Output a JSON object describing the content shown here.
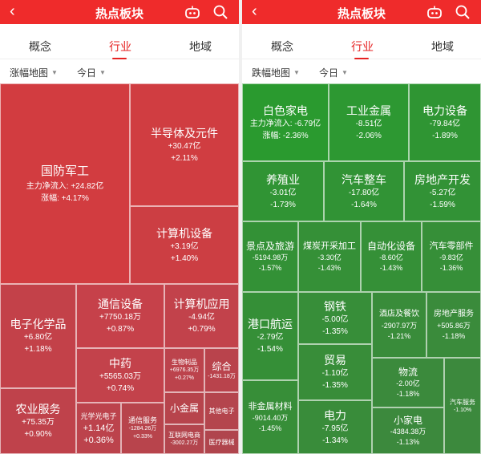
{
  "colors": {
    "header_bg": "#ef2b2b",
    "accent": "#e62222",
    "red_deep": "#cf3c3f",
    "red_mid": "#c7414b",
    "red_light": "#b9434b",
    "green_deep": "#2a9a2f",
    "green_mid": "#2e8d35",
    "green_light": "#3a8a3c"
  },
  "header": {
    "title": "热点板块",
    "back_icon": "chevron-left-icon",
    "robot_icon": "robot-icon",
    "search_icon": "search-icon"
  },
  "tabs": [
    "概念",
    "行业",
    "地域"
  ],
  "left": {
    "filter_label": "涨幅地图",
    "period_label": "今日",
    "sectors": [
      {
        "name": "国防军工",
        "flow": "主力净流入: +24.82亿",
        "change": "涨幅: +4.17%"
      },
      {
        "name": "半导体及元件",
        "flow": "+30.47亿",
        "change": "+2.11%"
      },
      {
        "name": "计算机设备",
        "flow": "+3.19亿",
        "change": "+1.40%"
      },
      {
        "name": "电子化学品",
        "flow": "+6.80亿",
        "change": "+1.18%"
      },
      {
        "name": "通信设备",
        "flow": "+7750.18万",
        "change": "+0.87%"
      },
      {
        "name": "计算机应用",
        "flow": "-4.94亿",
        "change": "+0.79%"
      },
      {
        "name": "中药",
        "flow": "+5565.03万",
        "change": "+0.74%"
      },
      {
        "name": "生物制品",
        "flow": "+6976.35万",
        "change": "+0.27%"
      },
      {
        "name": "综合",
        "flow": "-1431.18万",
        "change": ""
      },
      {
        "name": "农业服务",
        "flow": "+75.35万",
        "change": "+0.90%"
      },
      {
        "name": "光学光电子",
        "flow": "+1.14亿",
        "change": "+0.36%"
      },
      {
        "name": "通信服务",
        "flow": "-1284.26万",
        "change": "+0.33%"
      },
      {
        "name": "小金属",
        "flow": "",
        "change": ""
      },
      {
        "name": "互联网电商",
        "flow": "-3002.27万",
        "change": ""
      },
      {
        "name": "其他电子",
        "flow": "",
        "change": ""
      },
      {
        "name": "医疗器械",
        "flow": "",
        "change": ""
      }
    ]
  },
  "right": {
    "filter_label": "跌幅地图",
    "period_label": "今日",
    "sectors": [
      {
        "name": "白色家电",
        "flow": "主力净流入: -6.79亿",
        "change": "涨幅: -2.36%"
      },
      {
        "name": "工业金属",
        "flow": "-8.51亿",
        "change": "-2.06%"
      },
      {
        "name": "电力设备",
        "flow": "-79.84亿",
        "change": "-1.89%"
      },
      {
        "name": "养殖业",
        "flow": "-3.01亿",
        "change": "-1.73%"
      },
      {
        "name": "汽车整车",
        "flow": "-17.80亿",
        "change": "-1.64%"
      },
      {
        "name": "房地产开发",
        "flow": "-5.27亿",
        "change": "-1.59%"
      },
      {
        "name": "景点及旅游",
        "flow": "-5194.98万",
        "change": "-1.57%"
      },
      {
        "name": "煤炭开采加工",
        "flow": "-3.30亿",
        "change": "-1.43%"
      },
      {
        "name": "自动化设备",
        "flow": "-8.60亿",
        "change": "-1.43%"
      },
      {
        "name": "汽车零部件",
        "flow": "-9.83亿",
        "change": "-1.36%"
      },
      {
        "name": "钢铁",
        "flow": "-5.00亿",
        "change": "-1.35%"
      },
      {
        "name": "港口航运",
        "flow": "-2.79亿",
        "change": "-1.54%"
      },
      {
        "name": "酒店及餐饮",
        "flow": "-2907.97万",
        "change": "-1.21%"
      },
      {
        "name": "房地产服务",
        "flow": "+505.86万",
        "change": "-1.18%"
      },
      {
        "name": "贸易",
        "flow": "-1.10亿",
        "change": "-1.35%"
      },
      {
        "name": "物流",
        "flow": "-2.00亿",
        "change": "-1.18%"
      },
      {
        "name": "汽车服务",
        "flow": "",
        "change": "-1.10%"
      },
      {
        "name": "非金属材料",
        "flow": "-9014.40万",
        "change": "-1.45%"
      },
      {
        "name": "电力",
        "flow": "-7.95亿",
        "change": "-1.34%"
      },
      {
        "name": "小家电",
        "flow": "-4384.38万",
        "change": "-1.13%"
      }
    ]
  }
}
